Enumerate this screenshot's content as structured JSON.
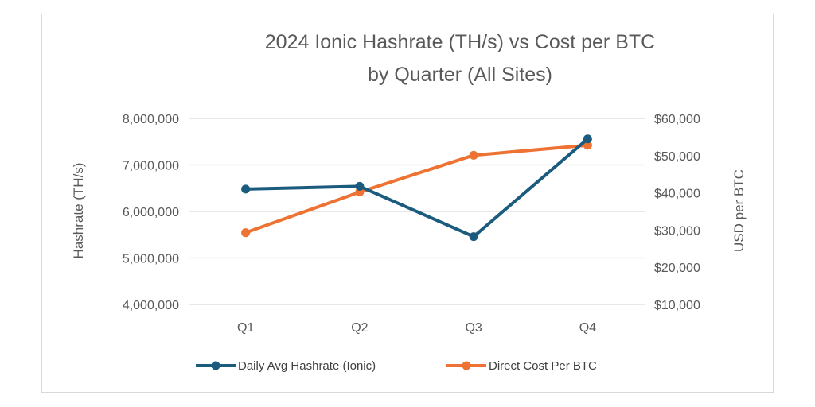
{
  "colors": {
    "hashrate": "#1B5C7E",
    "cost": "#EE7231",
    "grid": "#d9d9d9",
    "text": "#595959"
  },
  "chart_data": {
    "type": "line",
    "title_lines": [
      "2024 Ionic Hashrate (TH/s) vs Cost per BTC",
      "by Quarter (All Sites)"
    ],
    "categories": [
      "Q1",
      "Q2",
      "Q3",
      "Q4"
    ],
    "ylabel_left": "Hashrate (TH/s)",
    "ylabel_right": "USD per BTC",
    "y_left": {
      "range": [
        4000000,
        8000000
      ],
      "ticks": [
        4000000,
        5000000,
        6000000,
        7000000,
        8000000
      ],
      "tick_labels": [
        "4,000,000",
        "5,000,000",
        "6,000,000",
        "7,000,000",
        "8,000,000"
      ]
    },
    "y_right": {
      "range": [
        10000,
        60000
      ],
      "ticks": [
        10000,
        20000,
        30000,
        40000,
        50000,
        60000
      ],
      "tick_labels": [
        "$10,000",
        "$20,000",
        "$30,000",
        "$40,000",
        "$50,000",
        "$60,000"
      ]
    },
    "grid": true,
    "legend_position": "bottom",
    "series": [
      {
        "name": "Daily Avg Hashrate (Ionic)",
        "axis": "left",
        "color_key": "hashrate",
        "values": [
          6480000,
          6540000,
          5460000,
          7560000
        ]
      },
      {
        "name": "Direct Cost Per BTC",
        "axis": "right",
        "color_key": "cost",
        "values": [
          29300,
          40200,
          50100,
          52800
        ]
      }
    ]
  }
}
